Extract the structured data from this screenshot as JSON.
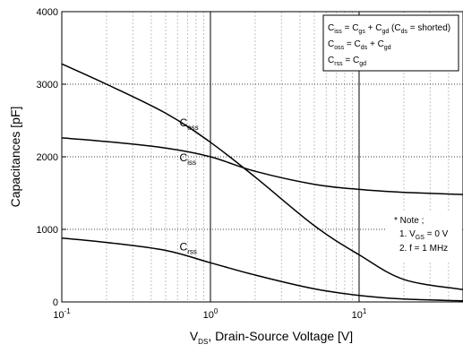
{
  "chart_data": {
    "type": "line",
    "xscale": "log",
    "xlim": [
      0.1,
      50
    ],
    "ylim": [
      0,
      4000
    ],
    "xlabel": {
      "prefix": "V",
      "sub": "DS",
      "suffix": ", Drain-Source Voltage [V]"
    },
    "ylabel": "Capacitances [pF]",
    "y_ticks": [
      "0",
      "1000",
      "2000",
      "3000",
      "4000"
    ],
    "x_ticks": [
      {
        "base": "10",
        "exp": "-1"
      },
      {
        "base": "10",
        "exp": "0"
      },
      {
        "base": "10",
        "exp": "1"
      }
    ],
    "series": [
      {
        "label": {
          "main": "C",
          "sub": "oss"
        },
        "x": [
          0.1,
          0.2,
          0.5,
          1,
          2,
          5,
          10,
          20,
          50
        ],
        "y": [
          3280,
          3000,
          2600,
          2200,
          1720,
          1050,
          650,
          310,
          170
        ]
      },
      {
        "label": {
          "main": "C",
          "sub": "iss"
        },
        "x": [
          0.1,
          0.2,
          0.5,
          1,
          2,
          5,
          10,
          20,
          50
        ],
        "y": [
          2260,
          2210,
          2120,
          2000,
          1800,
          1620,
          1550,
          1510,
          1480
        ]
      },
      {
        "label": {
          "main": "C",
          "sub": "rss"
        },
        "x": [
          0.1,
          0.2,
          0.5,
          1,
          2,
          5,
          10,
          20,
          50
        ],
        "y": [
          880,
          820,
          710,
          540,
          370,
          180,
          90,
          40,
          15
        ]
      }
    ],
    "legend": {
      "position": "top-right",
      "lines": [
        {
          "parts": [
            [
              "C",
              ""
            ],
            [
              "iss",
              "sub"
            ],
            [
              " = C",
              ""
            ],
            [
              "gs",
              "sub"
            ],
            [
              " + C",
              ""
            ],
            [
              "gd",
              "sub"
            ],
            [
              " (C",
              ""
            ],
            [
              "ds",
              "sub"
            ],
            [
              " = shorted)",
              ""
            ]
          ]
        },
        {
          "parts": [
            [
              "C",
              ""
            ],
            [
              "oss",
              "sub"
            ],
            [
              " = C",
              ""
            ],
            [
              "ds",
              "sub"
            ],
            [
              " + C",
              ""
            ],
            [
              "gd",
              "sub"
            ]
          ]
        },
        {
          "parts": [
            [
              "C",
              ""
            ],
            [
              "rss",
              "sub"
            ],
            [
              " = C",
              ""
            ],
            [
              "gd",
              "sub"
            ]
          ]
        }
      ]
    },
    "note": {
      "title": "* Note ;",
      "lines": [
        {
          "parts": [
            [
              "1. V",
              ""
            ],
            [
              "GS",
              "sub"
            ],
            [
              " = 0 V",
              ""
            ]
          ]
        },
        {
          "parts": [
            [
              "2. f = 1 MHz",
              ""
            ]
          ]
        }
      ]
    }
  }
}
